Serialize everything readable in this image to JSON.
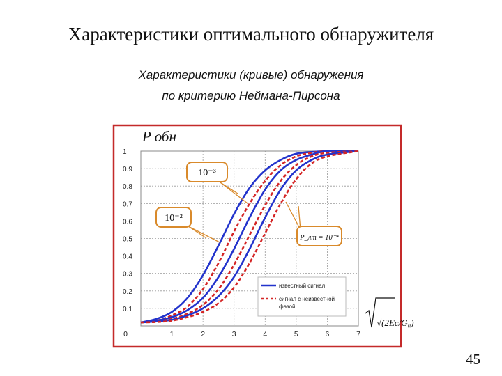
{
  "page": {
    "title": "Характеристики оптимального обнаружителя",
    "subtitle_line1": "Характеристики (кривые) обнаружения",
    "subtitle_line2": "по критерию Неймана-Пирсона",
    "page_number": "45"
  },
  "chart_data": {
    "type": "line",
    "ylabel": "P обн",
    "xlabel": "√(2Eс/G₀)",
    "xlim": [
      0,
      7
    ],
    "ylim": [
      0,
      1
    ],
    "x_ticks": [
      0,
      1,
      2,
      3,
      4,
      5,
      6,
      7
    ],
    "y_ticks": [
      "0.1",
      "0.2",
      "0.3",
      "0.4",
      "0.5",
      "0.6",
      "0.7",
      "0.8",
      "0.9",
      "1"
    ],
    "x_tick_labels": [
      "0",
      "1",
      "2",
      "3",
      "4",
      "5",
      "6",
      "7"
    ],
    "grid": true,
    "legend_position": "bottom-right",
    "legend": {
      "known": "известный сигнал",
      "unknown_line1": "сигнал с неизвестной",
      "unknown_line2": "фазой"
    },
    "annotations": {
      "pf_a": "10⁻³",
      "pf_b": "10⁻²",
      "pf_c": "P_лт = 10⁻⁴"
    },
    "colors": {
      "known": "#2233cc",
      "unknown": "#d42525",
      "frame": "#c42a2a",
      "callout": "#d98a2b"
    },
    "series": [
      {
        "legend": "known",
        "false_alarm": "10⁻²",
        "dash": false,
        "x": [
          0,
          0.5,
          1,
          1.5,
          2,
          2.5,
          3,
          3.5,
          4,
          4.5,
          5,
          5.5,
          6,
          7
        ],
        "y": [
          0.02,
          0.04,
          0.08,
          0.16,
          0.29,
          0.46,
          0.64,
          0.79,
          0.89,
          0.95,
          0.985,
          0.995,
          1,
          1
        ]
      },
      {
        "legend": "unknown",
        "false_alarm": "10⁻²",
        "dash": true,
        "x": [
          0,
          0.5,
          1,
          1.5,
          2,
          2.5,
          3,
          3.5,
          4,
          4.5,
          5,
          5.5,
          6,
          7
        ],
        "y": [
          0.02,
          0.03,
          0.06,
          0.11,
          0.21,
          0.36,
          0.54,
          0.7,
          0.83,
          0.92,
          0.97,
          0.99,
          1,
          1
        ]
      },
      {
        "legend": "known",
        "false_alarm": "10⁻³",
        "dash": false,
        "x": [
          0,
          0.5,
          1,
          1.5,
          2,
          2.5,
          3,
          3.5,
          4,
          4.5,
          5,
          5.5,
          6,
          7
        ],
        "y": [
          0.02,
          0.03,
          0.05,
          0.09,
          0.16,
          0.28,
          0.44,
          0.62,
          0.78,
          0.89,
          0.95,
          0.98,
          1,
          1
        ]
      },
      {
        "legend": "unknown",
        "false_alarm": "10⁻³",
        "dash": true,
        "x": [
          0,
          0.5,
          1,
          1.5,
          2,
          2.5,
          3,
          3.5,
          4,
          4.5,
          5,
          5.5,
          6,
          7
        ],
        "y": [
          0.02,
          0.025,
          0.04,
          0.07,
          0.12,
          0.21,
          0.35,
          0.52,
          0.69,
          0.83,
          0.92,
          0.97,
          0.99,
          1
        ]
      },
      {
        "legend": "known",
        "false_alarm": "10⁻⁴",
        "dash": false,
        "x": [
          0,
          0.5,
          1,
          1.5,
          2,
          2.5,
          3,
          3.5,
          4,
          4.5,
          5,
          5.5,
          6,
          7
        ],
        "y": [
          0.02,
          0.025,
          0.035,
          0.06,
          0.1,
          0.17,
          0.28,
          0.44,
          0.62,
          0.78,
          0.89,
          0.95,
          0.98,
          1
        ]
      },
      {
        "legend": "unknown",
        "false_alarm": "10⁻⁴",
        "dash": true,
        "x": [
          0,
          0.5,
          1,
          1.5,
          2,
          2.5,
          3,
          3.5,
          4,
          4.5,
          5,
          5.5,
          6,
          7
        ],
        "y": [
          0.02,
          0.022,
          0.03,
          0.05,
          0.08,
          0.13,
          0.22,
          0.36,
          0.53,
          0.7,
          0.84,
          0.93,
          0.97,
          1
        ]
      }
    ]
  }
}
